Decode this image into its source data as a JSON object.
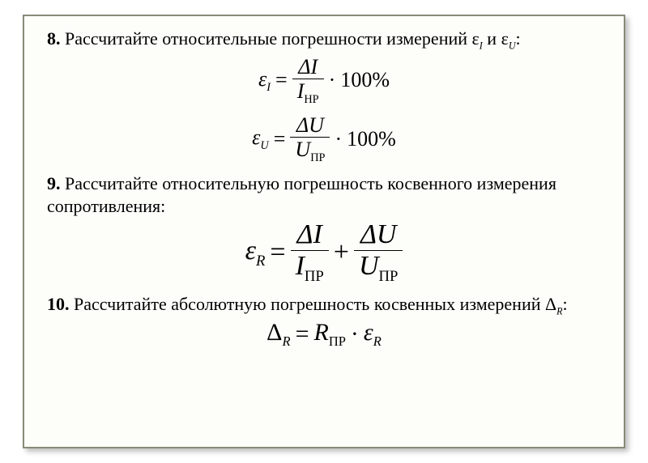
{
  "background_color": "#ffffff",
  "frame": {
    "border_color": "#8a8a7a",
    "fill_color": "#fdfdf9",
    "shadow_color": "rgba(0,0,0,0.25)"
  },
  "typography": {
    "body_font": "Times New Roman",
    "body_size_pt": 17,
    "formula_size_pt": 20,
    "big_formula_size_pt": 26,
    "text_color": "#000000"
  },
  "items": [
    {
      "number": "8.",
      "text_before": "Рассчитайте относительные погрешности измерений ε",
      "sub1": "I",
      "mid": " и ε",
      "sub2": "U",
      "text_after": ":",
      "formulas": [
        {
          "lhs_symbol": "ε",
          "lhs_sub": "I",
          "eq": "=",
          "num_symbol": "ΔI",
          "den_symbol": "I",
          "den_sub": "НР",
          "tail_op": "·",
          "tail_text": "100%"
        },
        {
          "lhs_symbol": "ε",
          "lhs_sub": "U",
          "eq": "=",
          "num_symbol": "ΔU",
          "den_symbol": "U",
          "den_sub": "ПР",
          "tail_op": "·",
          "tail_text": "100%"
        }
      ]
    },
    {
      "number": "9.",
      "text": "Рассчитайте относительную погрешность косвенного измерения сопротивления:",
      "formula_big": {
        "lhs_symbol": "ε",
        "lhs_sub": "R",
        "eq": "=",
        "term1": {
          "num": "ΔI",
          "den_symbol": "I",
          "den_sub": "ПР"
        },
        "plus": "+",
        "term2": {
          "num": "ΔU",
          "den_symbol": "U",
          "den_sub": "ПР"
        }
      }
    },
    {
      "number": "10.",
      "text_before": "Рассчитайте абсолютную погрешность косвенных измерений Δ",
      "sub": "R",
      "text_after": ":",
      "formula_inline": {
        "lhs_symbol": "Δ",
        "lhs_sub": "R",
        "eq": "=",
        "rhs1_symbol": "R",
        "rhs1_sub": "ПР",
        "dot": "·",
        "rhs2_symbol": "ε",
        "rhs2_sub": "R"
      }
    }
  ]
}
